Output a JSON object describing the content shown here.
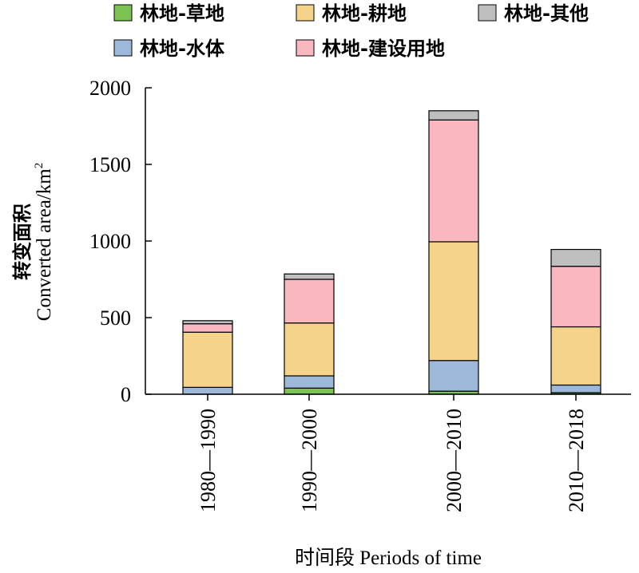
{
  "chart_data": {
    "type": "bar",
    "stacked": true,
    "categories": [
      "1980—1990",
      "1990—2000",
      "2000—2010",
      "2010—2018"
    ],
    "series": [
      {
        "name": "林地-草地",
        "color": "#7cc354",
        "values": [
          0,
          40,
          20,
          10
        ]
      },
      {
        "name": "林地-水体",
        "color": "#9db8d8",
        "values": [
          45,
          80,
          200,
          50
        ]
      },
      {
        "name": "林地-耕地",
        "color": "#f6d38a",
        "values": [
          360,
          345,
          775,
          380
        ]
      },
      {
        "name": "林地-建设用地",
        "color": "#f9b7c0",
        "values": [
          55,
          285,
          795,
          395
        ]
      },
      {
        "name": "林地-其他",
        "color": "#bfbfbf",
        "values": [
          20,
          35,
          60,
          110
        ]
      }
    ],
    "legend_order": [
      "林地-草地",
      "林地-耕地",
      "林地-其他",
      "林地-水体",
      "林地-建设用地"
    ],
    "ylim": [
      0,
      2000
    ],
    "yticks": [
      "0",
      "500",
      "1000",
      "1500",
      "2000"
    ],
    "ylabel_cn": "转变面积",
    "ylabel_en": "Converted area/km",
    "ylabel_sup": "2",
    "xlabel": "时间段 Periods of time",
    "grid": false,
    "legend_position": "top"
  }
}
